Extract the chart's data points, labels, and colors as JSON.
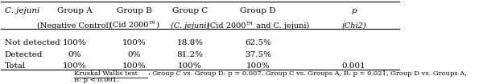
{
  "col_headers_line1": [
    "C. jejuni",
    "Group A",
    "Group B",
    "Group C",
    "Group D",
    "p"
  ],
  "col_headers_line2": [
    "",
    "(Negative Control)",
    "(Cid 2000™)",
    "(C. jejuni)",
    "(Cid 2000™ and C. jejuni)",
    "(Chi2)"
  ],
  "rows": [
    [
      "Not detected",
      "100%",
      "100%",
      "18.8%",
      "62.5%",
      ""
    ],
    [
      "Detected",
      "0%",
      "0%",
      "81.2%",
      "37.5%",
      ""
    ],
    [
      "Total",
      "100%",
      "100%",
      "100%",
      "100%",
      "0.001"
    ]
  ],
  "footer_underlined": "Kruskal Wallis test",
  "footer_rest": ": Group C vs. Group D: p = 0.007, Group C vs. Groups A, B: p = 0.021, Group D vs. Groups A,",
  "footer_line2": "B: p < 0.001.",
  "background": "#ffffff"
}
